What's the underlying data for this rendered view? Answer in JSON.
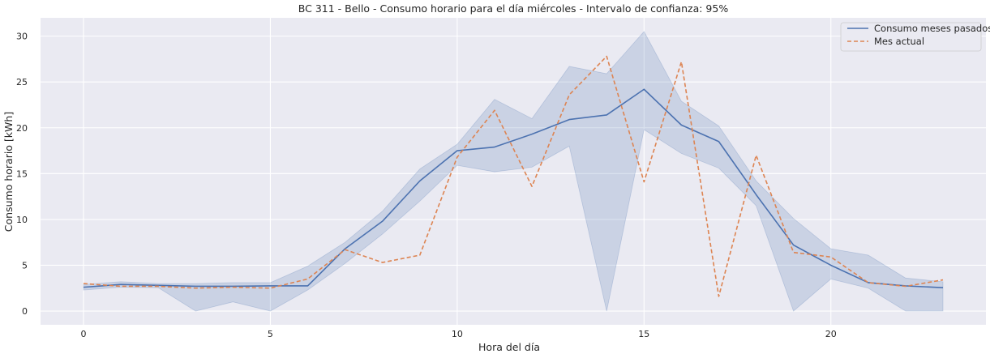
{
  "chart_data": {
    "type": "line",
    "title": "BC 311 - Bello - Consumo horario para el día miércoles - Intervalo de confianza: 95%",
    "xlabel": "Hora del día",
    "ylabel": "Consumo horario [kWh]",
    "xlim": [
      -1.15,
      24.15
    ],
    "ylim": [
      -1.5,
      32
    ],
    "xticks": [
      0,
      5,
      10,
      15,
      20
    ],
    "yticks": [
      0,
      5,
      10,
      15,
      20,
      25,
      30
    ],
    "grid": true,
    "legend_position": "top-right",
    "x": [
      0,
      1,
      2,
      3,
      4,
      5,
      6,
      7,
      8,
      9,
      10,
      11,
      12,
      13,
      14,
      15,
      16,
      17,
      18,
      19,
      20,
      21,
      22,
      23
    ],
    "series": [
      {
        "name": "Consumo meses pasados",
        "style": "solid",
        "color": "#4c72b0",
        "values": [
          2.6,
          2.9,
          2.8,
          2.7,
          2.7,
          2.75,
          2.75,
          6.8,
          9.8,
          14.2,
          17.5,
          17.9,
          19.3,
          20.9,
          21.4,
          24.2,
          20.3,
          18.5,
          12.7,
          7.2,
          5.0,
          3.1,
          2.75,
          2.55
        ],
        "ci_lower": [
          2.3,
          2.6,
          2.55,
          0.0,
          1.0,
          0.0,
          2.3,
          5.2,
          8.4,
          12.0,
          15.9,
          15.2,
          15.7,
          18.0,
          0.0,
          19.8,
          17.2,
          15.6,
          11.5,
          0.0,
          3.5,
          2.5,
          0.0,
          0.0
        ],
        "ci_upper": [
          2.9,
          3.2,
          3.0,
          3.0,
          3.1,
          3.1,
          4.9,
          7.5,
          10.9,
          15.5,
          18.2,
          23.1,
          21.0,
          26.7,
          25.9,
          30.5,
          22.9,
          20.2,
          14.2,
          10.1,
          6.8,
          6.1,
          3.6,
          3.2
        ]
      },
      {
        "name": "Mes actual",
        "style": "dashed",
        "color": "#dd8452",
        "values": [
          3.0,
          2.7,
          2.7,
          2.5,
          2.6,
          2.5,
          3.5,
          6.7,
          5.3,
          6.1,
          16.8,
          21.9,
          13.6,
          23.6,
          27.8,
          14.1,
          27.2,
          1.6,
          17.0,
          6.4,
          5.9,
          3.1,
          2.7,
          3.4
        ]
      }
    ]
  },
  "colors": {
    "background": "#ffffff",
    "plot_area": "#eaeaf2",
    "grid": "#ffffff",
    "ci_fill": "#4c72b0"
  }
}
